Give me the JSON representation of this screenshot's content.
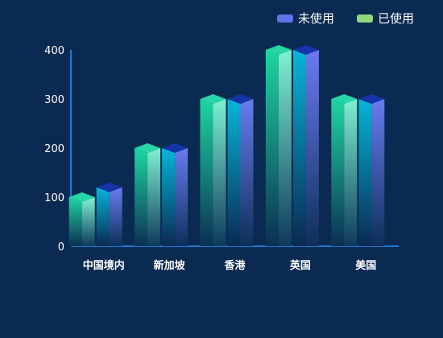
{
  "chart_data": {
    "type": "bar",
    "categories": [
      "中国境内",
      "新加坡",
      "香港",
      "英国",
      "美国"
    ],
    "series": [
      {
        "name": "已使用",
        "values": [
          100,
          200,
          300,
          400,
          300
        ],
        "color": "#8fd97c"
      },
      {
        "name": "未使用",
        "values": [
          120,
          200,
          300,
          400,
          300
        ],
        "color": "#5b74e8"
      }
    ],
    "ylim": [
      0,
      400
    ],
    "yticks": [
      0,
      100,
      200,
      300,
      400
    ],
    "legend_position": "top-right",
    "style": "3d-bar"
  }
}
